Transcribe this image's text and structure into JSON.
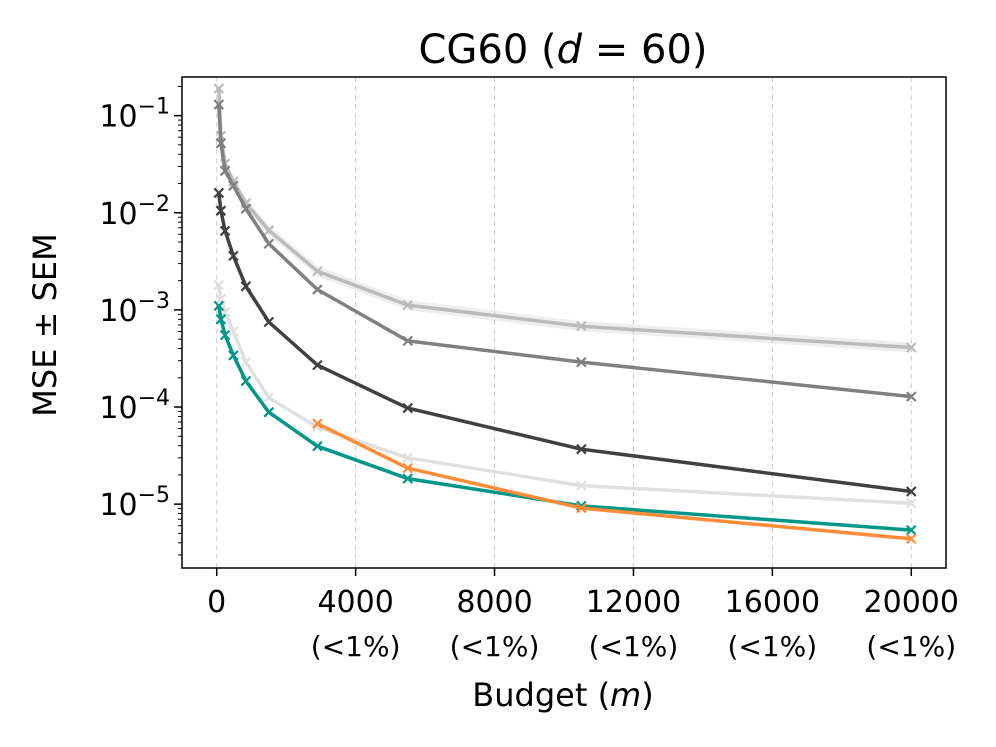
{
  "chart_data": {
    "type": "line",
    "title": "CG60 (d = 60)",
    "title_parts": {
      "prefix": "CG60 (",
      "var": "d",
      "rest": " = 60)"
    },
    "xlabel": "Budget (m)",
    "xlabel_parts": {
      "prefix": "Budget (",
      "var": "m",
      "suffix": ")"
    },
    "ylabel": "MSE ± SEM",
    "y_scale": "log",
    "xlim": [
      -1000,
      21000
    ],
    "ylim": [
      2.2e-06,
      0.25
    ],
    "grid": "vertical dashed",
    "x_ticks": [
      {
        "value": 0,
        "label": "0",
        "sub": ""
      },
      {
        "value": 4000,
        "label": "4000",
        "sub": "(<1%)"
      },
      {
        "value": 8000,
        "label": "8000",
        "sub": "(<1%)"
      },
      {
        "value": 12000,
        "label": "12000",
        "sub": "(<1%)"
      },
      {
        "value": 16000,
        "label": "16000",
        "sub": "(<1%)"
      },
      {
        "value": 20000,
        "label": "20000",
        "sub": "(<1%)"
      }
    ],
    "y_ticks": [
      {
        "value": 0.1,
        "mant": "10",
        "exp": "−1"
      },
      {
        "value": 0.01,
        "mant": "10",
        "exp": "−2"
      },
      {
        "value": 0.001,
        "mant": "10",
        "exp": "−3"
      },
      {
        "value": 0.0001,
        "mant": "10",
        "exp": "−4"
      },
      {
        "value": 1e-05,
        "mant": "10",
        "exp": "−5"
      }
    ],
    "series": [
      {
        "color": "#bbbbbb",
        "band": true,
        "x": [
          60,
          120,
          240,
          480,
          840,
          1500,
          2900,
          5500,
          10500,
          20000
        ],
        "y": [
          0.19,
          0.062,
          0.032,
          0.021,
          0.0125,
          0.0066,
          0.0025,
          0.00112,
          0.00068,
          0.00041
        ]
      },
      {
        "color": "#808080",
        "x": [
          60,
          120,
          240,
          480,
          840,
          1500,
          2900,
          5500,
          10500,
          20000
        ],
        "y": [
          0.13,
          0.052,
          0.027,
          0.019,
          0.011,
          0.0048,
          0.00162,
          0.00048,
          0.00029,
          0.000128
        ]
      },
      {
        "color": "#404040",
        "x": [
          60,
          120,
          240,
          480,
          840,
          1500,
          2900,
          5500,
          10500,
          20000
        ],
        "y": [
          0.016,
          0.0105,
          0.0065,
          0.0036,
          0.00175,
          0.00075,
          0.00027,
          9.75e-05,
          3.68e-05,
          1.35e-05
        ]
      },
      {
        "color": "#e0e0e0",
        "x": [
          60,
          120,
          240,
          480,
          840,
          1500,
          2900,
          5500,
          10500,
          20000
        ],
        "y": [
          0.0018,
          0.0013,
          0.00095,
          0.0006,
          0.00029,
          0.000125,
          6.2e-05,
          3e-05,
          1.55e-05,
          1.02e-05
        ]
      },
      {
        "color": "#009688",
        "x": [
          60,
          120,
          240,
          480,
          840,
          1500,
          2900,
          5500,
          10500,
          20000
        ],
        "y": [
          0.0011,
          0.0008,
          0.00055,
          0.00034,
          0.000185,
          8.85e-05,
          3.95e-05,
          1.83e-05,
          9.6e-06,
          5.4e-06
        ]
      },
      {
        "color": "#ff8c38",
        "x": [
          2900,
          5500,
          10500,
          20000
        ],
        "y": [
          6.75e-05,
          2.35e-05,
          9.1e-06,
          4.4e-06
        ]
      }
    ]
  }
}
